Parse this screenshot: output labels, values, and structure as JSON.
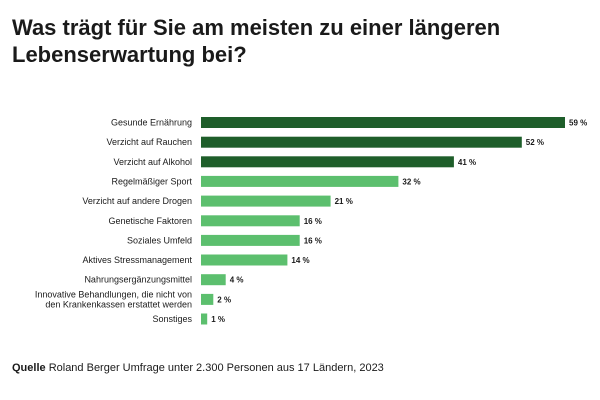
{
  "title": "Was trägt für Sie am meisten zu einer längeren Lebenserwartung bei?",
  "source": {
    "label": "Quelle",
    "text": "Roland Berger Umfrage unter 2.300 Personen aus 17 Ländern, 2023"
  },
  "colors": {
    "dark": "#1e5e2a",
    "light": "#5cbf6e"
  },
  "chart_data": {
    "type": "bar",
    "orientation": "horizontal",
    "title": "Was trägt für Sie am meisten zu einer längeren Lebenserwartung bei?",
    "unit": "%",
    "xlim": [
      0,
      59
    ],
    "categories": [
      [
        "Gesunde Ernährung"
      ],
      [
        "Verzicht auf Rauchen"
      ],
      [
        "Verzicht auf Alkohol"
      ],
      [
        "Regelmäßiger Sport"
      ],
      [
        "Verzicht auf andere Drogen"
      ],
      [
        "Genetische Faktoren"
      ],
      [
        "Soziales Umfeld"
      ],
      [
        "Aktives Stressmanagement"
      ],
      [
        "Nahrungsergänzungsmittel"
      ],
      [
        "Innovative Behandlungen, die nicht von",
        "den Krankenkassen erstattet werden"
      ],
      [
        "Sonstiges"
      ]
    ],
    "values": [
      59,
      52,
      41,
      32,
      21,
      16,
      16,
      14,
      4,
      2,
      1
    ],
    "labels": [
      "59 %",
      "52 %",
      "41 %",
      "32 %",
      "21 %",
      "16 %",
      "16 %",
      "14 %",
      "4 %",
      "2 %",
      "1 %"
    ],
    "highlight": [
      true,
      true,
      true,
      false,
      false,
      false,
      false,
      false,
      false,
      false,
      false
    ]
  }
}
